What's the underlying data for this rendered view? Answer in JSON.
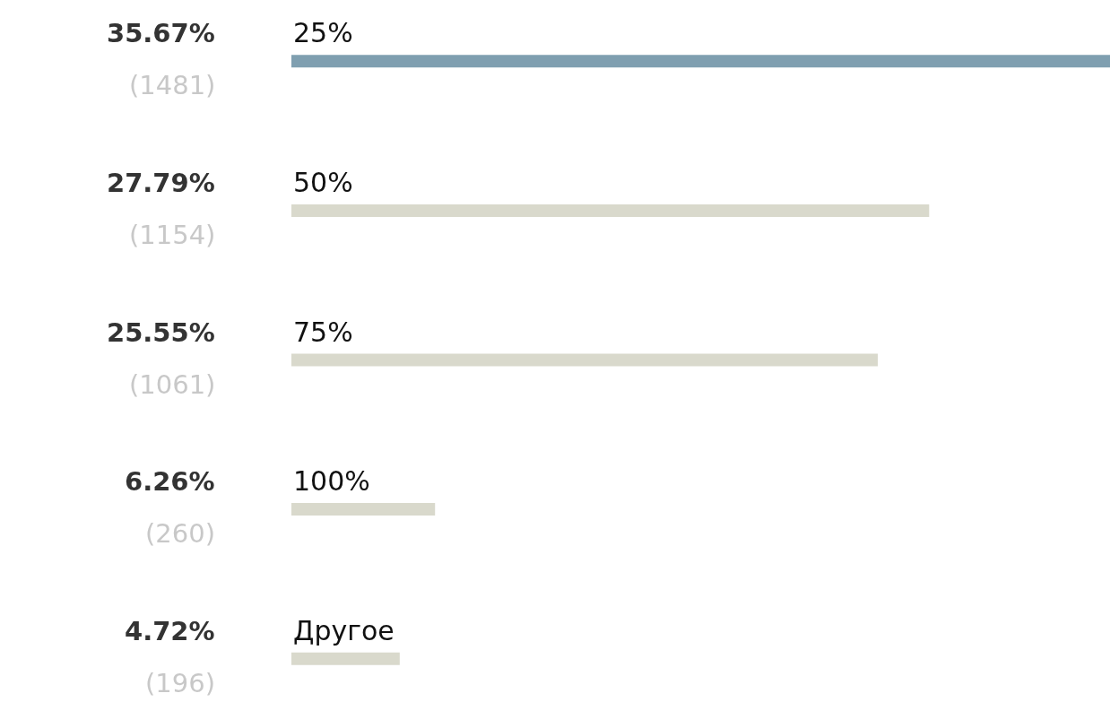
{
  "chart_data": {
    "type": "bar",
    "orientation": "horizontal",
    "categories": [
      "25%",
      "50%",
      "75%",
      "100%",
      "Другое"
    ],
    "values": [
      35.67,
      27.79,
      25.55,
      6.26,
      4.72
    ],
    "colors": [
      "#7f9fb0",
      "#d9d9cc",
      "#d9d9cc",
      "#d9d9cc",
      "#d9d9cc"
    ],
    "value_labels": [
      "35.67%\n(1481)",
      "27.79%\n(1154)",
      "25.55%\n(1061)",
      "6.26%\n(260)",
      "4.72%\n(196)"
    ]
  }
}
